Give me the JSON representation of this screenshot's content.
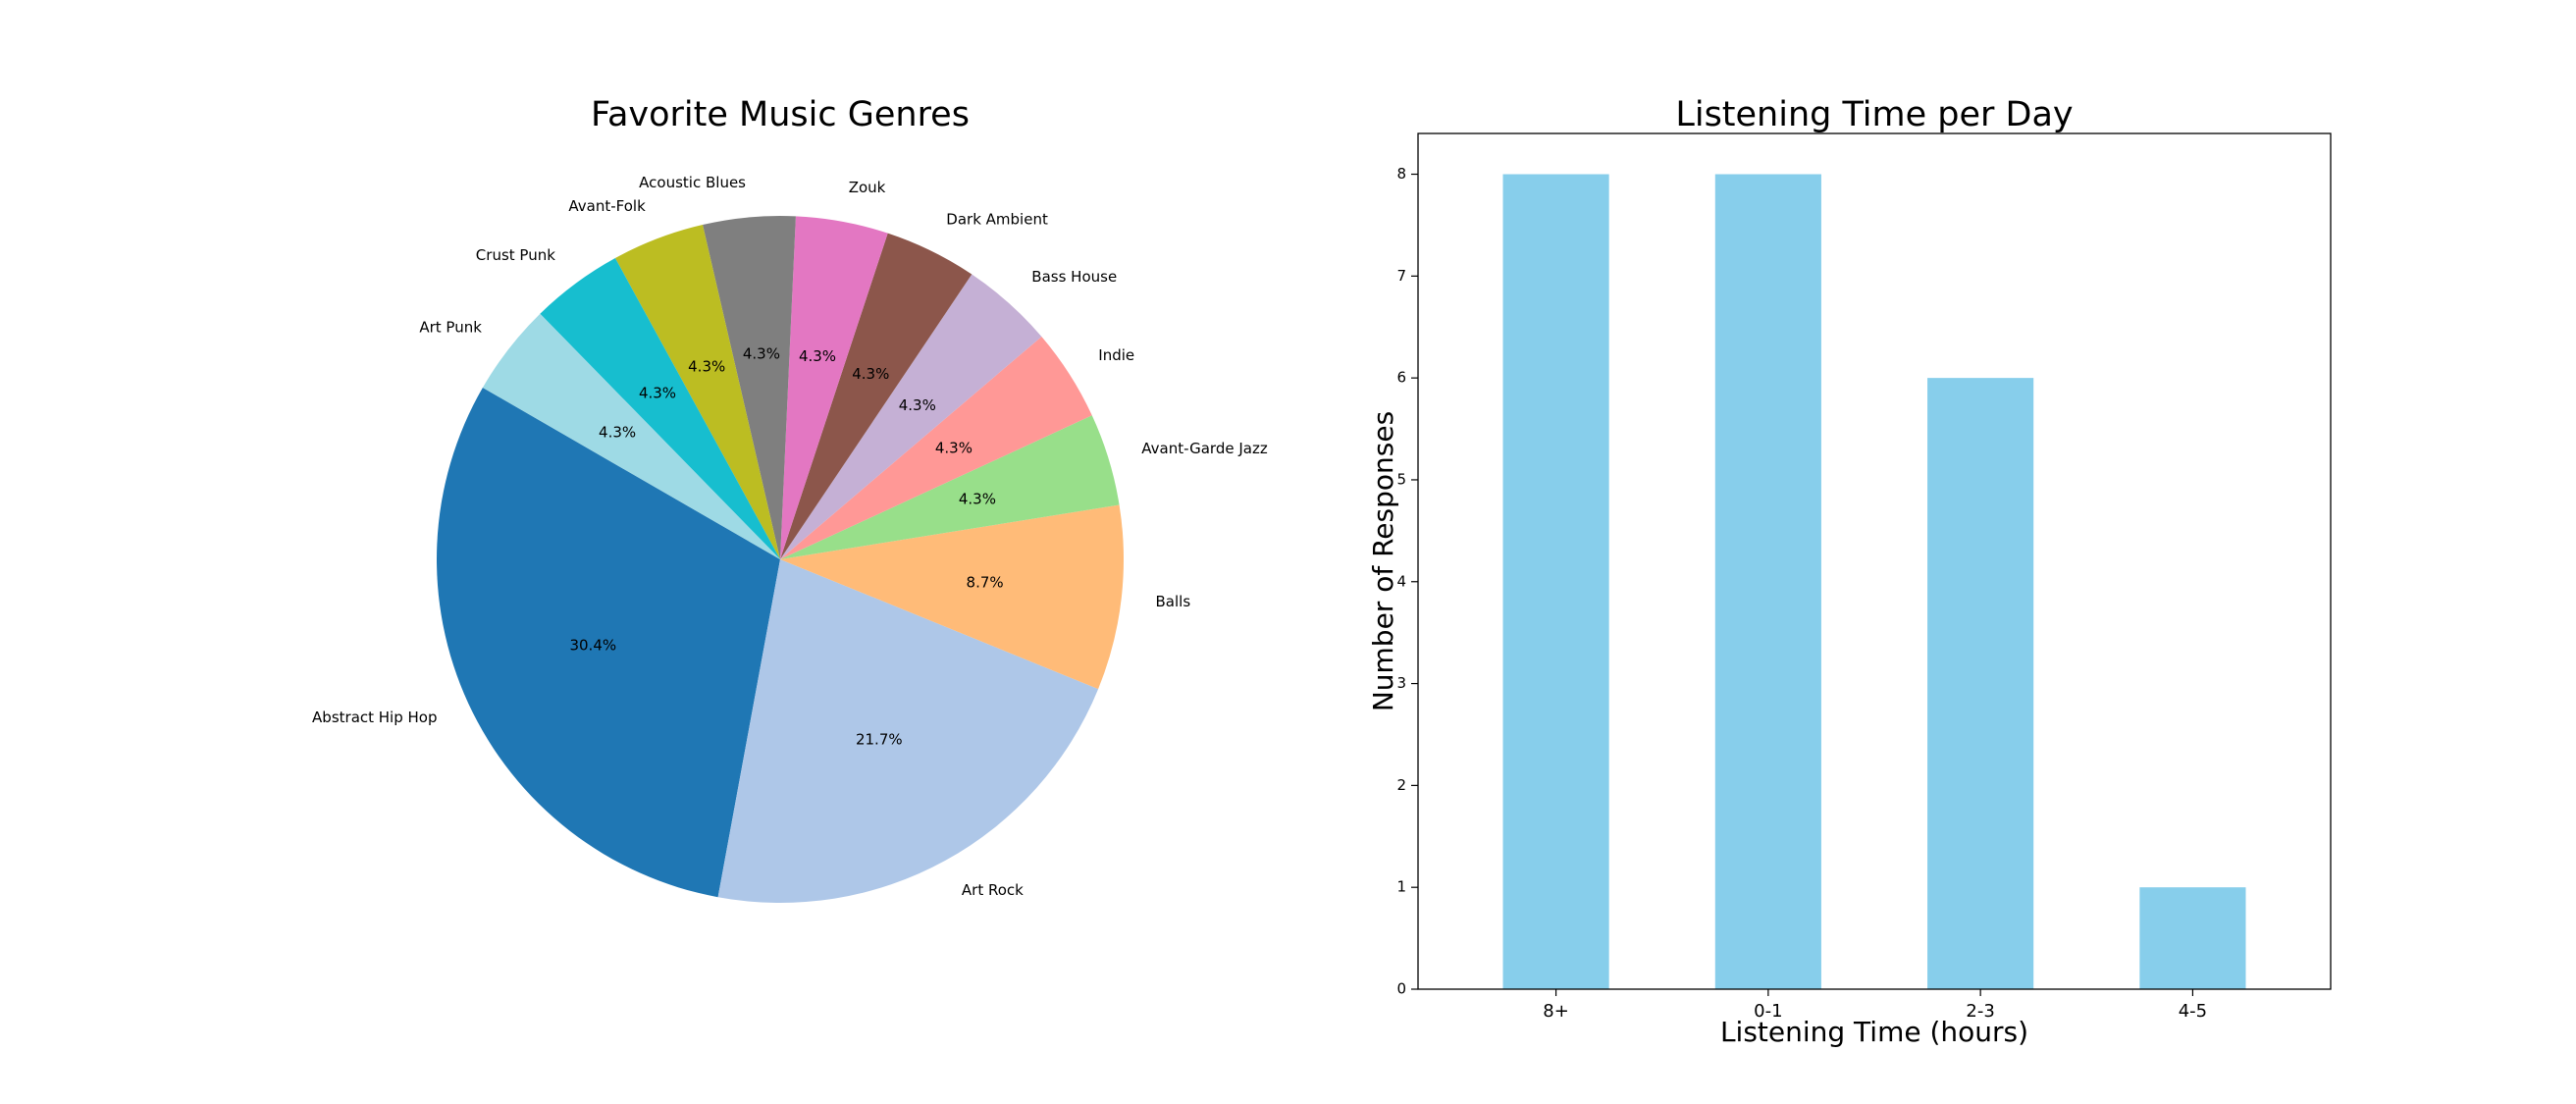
{
  "chart_data": [
    {
      "type": "pie",
      "title": "Favorite Music Genres",
      "categories": [
        "Abstract Hip Hop",
        "Art Rock",
        "Balls",
        "Avant-Garde Jazz",
        "Indie",
        "Bass House",
        "Dark Ambient",
        "Zouk",
        "Acoustic Blues",
        "Avant-Folk",
        "Crust Punk",
        "Art Punk"
      ],
      "values": [
        7,
        5,
        2,
        1,
        1,
        1,
        1,
        1,
        1,
        1,
        1,
        1
      ],
      "percent_labels": [
        "30.4%",
        "21.7%",
        "8.7%",
        "4.3%",
        "4.3%",
        "4.3%",
        "4.3%",
        "4.3%",
        "4.3%",
        "4.3%",
        "4.3%",
        "4.3%"
      ],
      "colors": [
        "#1f77b4",
        "#aec7e8",
        "#ffbb78",
        "#98df8a",
        "#ff9896",
        "#c5b0d5",
        "#8c564b",
        "#e377c2",
        "#7f7f7f",
        "#bcbd22",
        "#17becf",
        "#9edae5"
      ],
      "start_angle_deg": 150,
      "direction": "counterclockwise"
    },
    {
      "type": "bar",
      "title": "Listening Time per Day",
      "categories": [
        "8+",
        "0-1",
        "2-3",
        "4-5"
      ],
      "values": [
        8,
        8,
        6,
        1
      ],
      "xlabel": "Listening Time (hours)",
      "ylabel": "Number of Responses",
      "ylim": [
        0,
        8.4
      ],
      "yticks": [
        "0",
        "1",
        "2",
        "3",
        "4",
        "5",
        "6",
        "7",
        "8"
      ],
      "bar_color": "#87ceeb",
      "grid": false
    }
  ]
}
